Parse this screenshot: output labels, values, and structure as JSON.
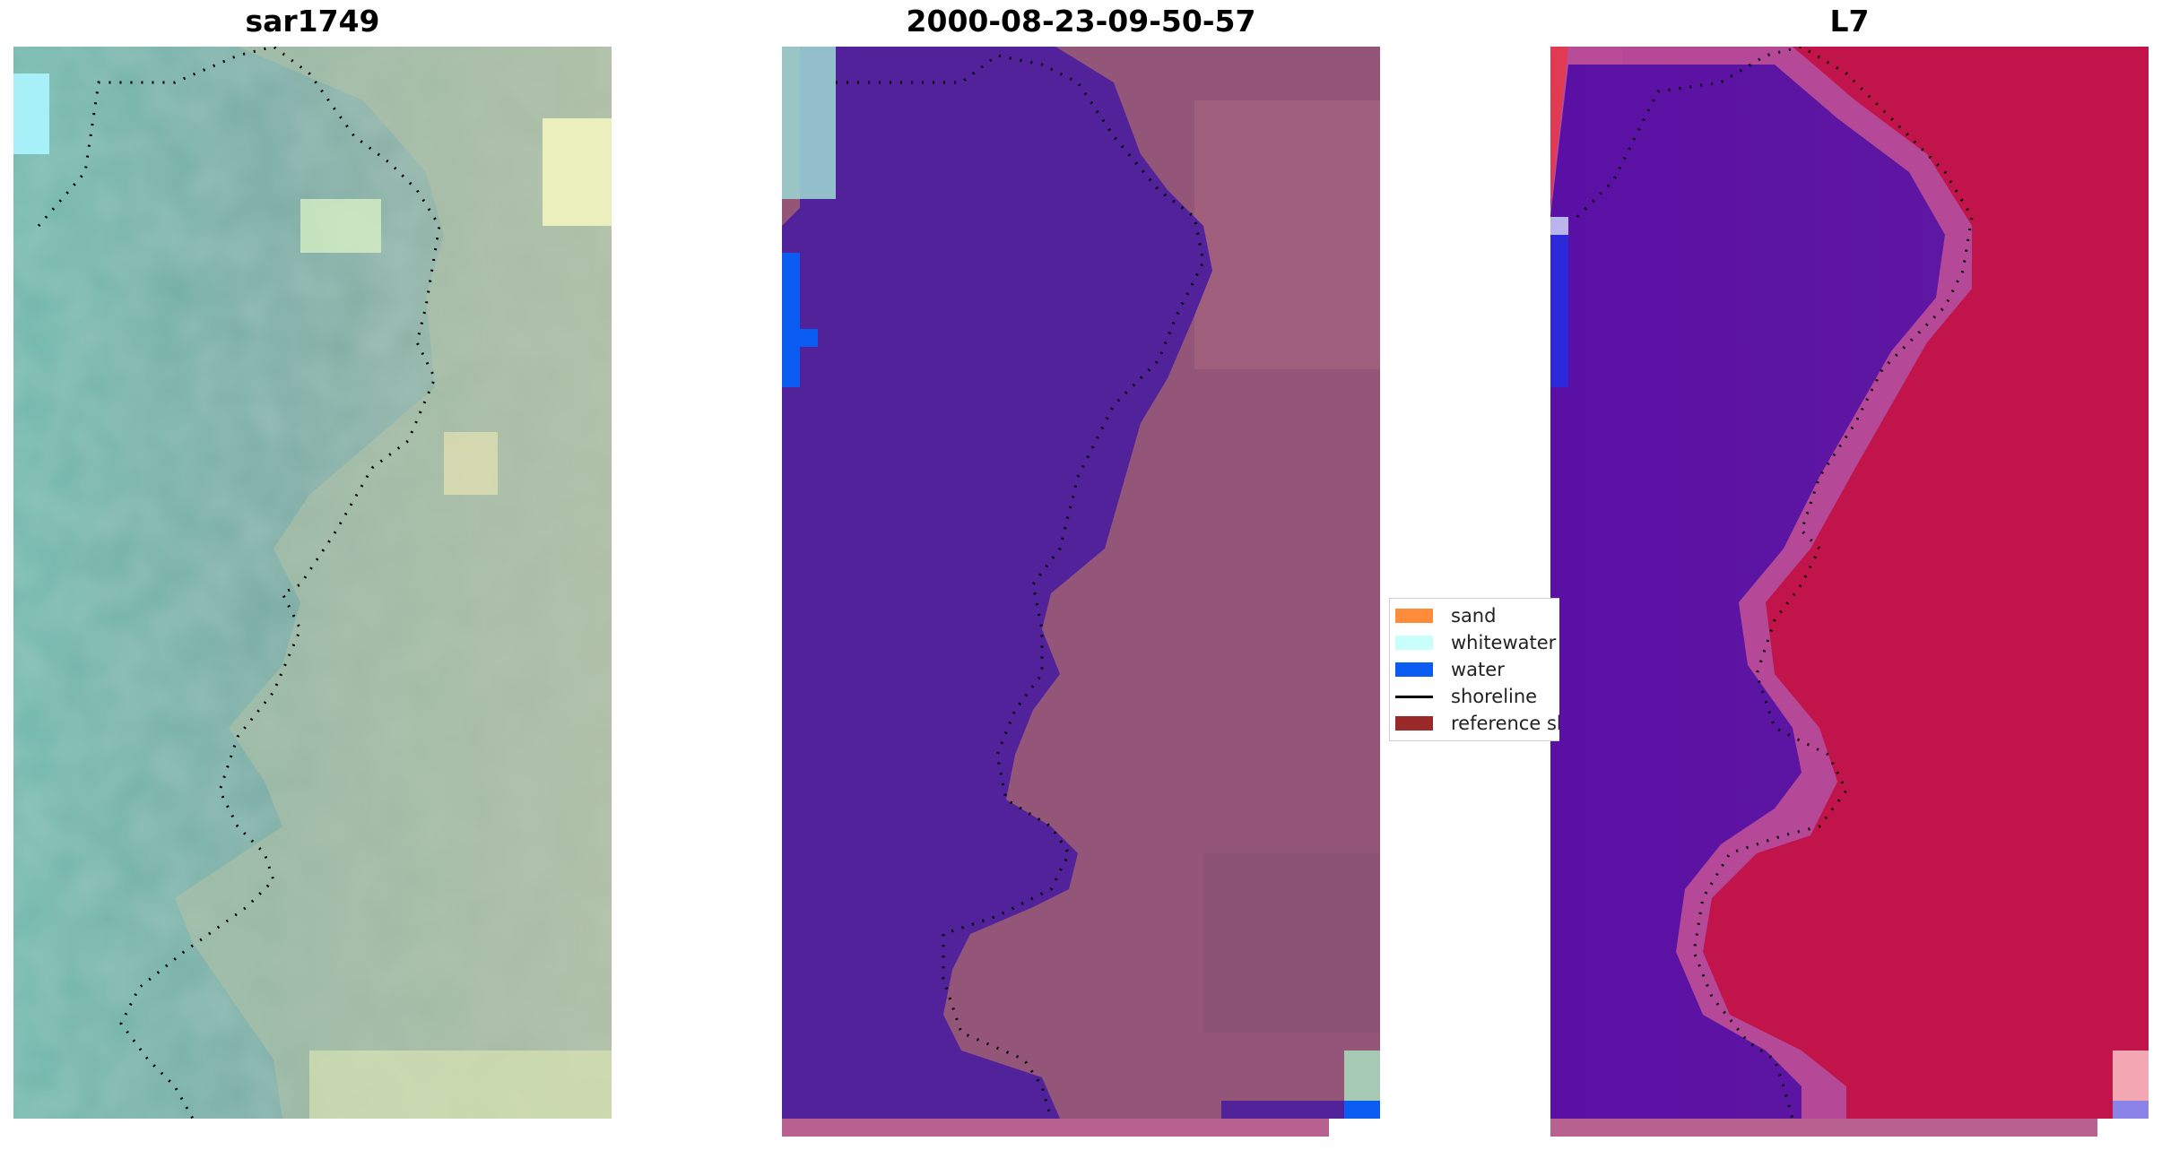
{
  "panels": [
    {
      "title": "sar1749"
    },
    {
      "title": "2000-08-23-09-50-57"
    },
    {
      "title": "L7"
    }
  ],
  "legend": {
    "items": [
      {
        "label": "sand",
        "color": "#ff8c3a",
        "kind": "patch"
      },
      {
        "label": "whitewater",
        "color": "#c9fffb",
        "kind": "patch"
      },
      {
        "label": "water",
        "color": "#0a5cf2",
        "kind": "patch"
      },
      {
        "label": "shoreline",
        "color": "#000000",
        "kind": "line"
      },
      {
        "label": "reference shoreline",
        "color": "#9a2a2a",
        "kind": "patch"
      }
    ]
  },
  "colors": {
    "rgb_water": "#6fa6a0",
    "rgb_land": "#a9bca5",
    "class_water_body": "#51229a",
    "class_land": "#935578",
    "index_water": "#5a10a4",
    "index_land": "#c0144a",
    "strip": "#b8608f"
  }
}
